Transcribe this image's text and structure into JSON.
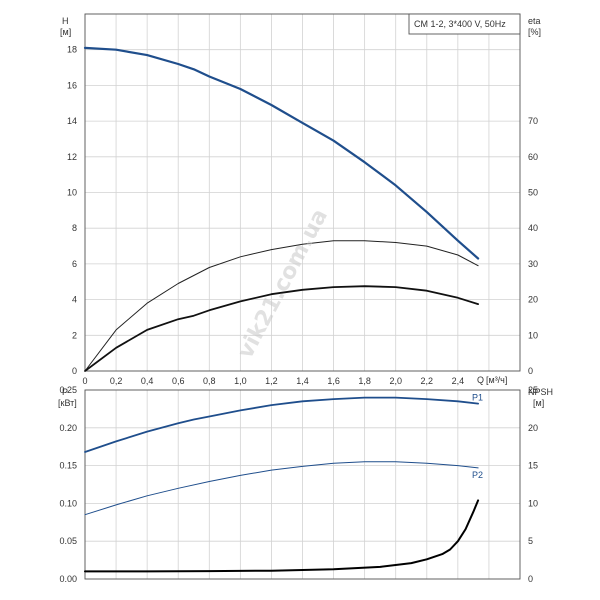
{
  "chart_data": [
    {
      "type": "line",
      "legend_box": "CM 1-2, 3*400 V, 50Hz",
      "ylabel_left": "H",
      "ylabel_left_unit": "[м]",
      "ylabel_right": "eta",
      "ylabel_right_unit": "[%]",
      "xlabel": "Q",
      "xlabel_unit": "[м³/ч]",
      "xlim": [
        0,
        2.8
      ],
      "ylim": [
        0,
        20
      ],
      "ylim_right": [
        0,
        100
      ],
      "grid": true,
      "x_ticks": [
        "0",
        "0,2",
        "0,4",
        "0,6",
        "0,8",
        "1,0",
        "1,2",
        "1,4",
        "1,6",
        "1,8",
        "2,0",
        "2,2",
        "2,4"
      ],
      "y_ticks": [
        "0",
        "2",
        "4",
        "6",
        "8",
        "10",
        "12",
        "14",
        "16",
        "18"
      ],
      "y_right_ticks": [
        "0",
        "10",
        "20",
        "30",
        "40",
        "50",
        "60",
        "70"
      ],
      "series": [
        {
          "color": "#1f4e8c",
          "axis": "left",
          "x": [
            0,
            0.2,
            0.4,
            0.6,
            0.7,
            0.8,
            1.0,
            1.2,
            1.4,
            1.6,
            1.8,
            2.0,
            2.2,
            2.4,
            2.53
          ],
          "y": [
            18.1,
            18.0,
            17.7,
            17.2,
            16.9,
            16.5,
            15.8,
            14.9,
            13.9,
            12.9,
            11.7,
            10.4,
            8.9,
            7.3,
            6.3
          ]
        },
        {
          "color": "#222222",
          "axis": "left",
          "x": [
            0,
            0.2,
            0.4,
            0.6,
            0.8,
            1.0,
            1.2,
            1.4,
            1.6,
            1.8,
            2.0,
            2.2,
            2.4,
            2.53
          ],
          "y": [
            0,
            2.3,
            3.8,
            4.9,
            5.8,
            6.4,
            6.8,
            7.1,
            7.3,
            7.3,
            7.2,
            7.0,
            6.5,
            5.9
          ]
        },
        {
          "color": "#111111",
          "axis": "left",
          "x": [
            0,
            0.2,
            0.4,
            0.6,
            0.7,
            0.8,
            1.0,
            1.2,
            1.4,
            1.6,
            1.8,
            2.0,
            2.2,
            2.4,
            2.53
          ],
          "y": [
            0,
            1.3,
            2.3,
            2.9,
            3.1,
            3.4,
            3.9,
            4.3,
            4.55,
            4.7,
            4.75,
            4.7,
            4.5,
            4.1,
            3.75
          ]
        }
      ]
    },
    {
      "type": "line",
      "ylabel_left": "P",
      "ylabel_left_unit": "[кВт]",
      "ylabel_right": "NPSH",
      "ylabel_right_unit": "[м]",
      "xlim": [
        0,
        2.8
      ],
      "ylim": [
        0,
        0.25
      ],
      "ylim_right": [
        0,
        25
      ],
      "grid": true,
      "y_ticks": [
        "0.00",
        "0.05",
        "0.10",
        "0.15",
        "0.20",
        "0.25"
      ],
      "y_right_ticks": [
        "0",
        "5",
        "10",
        "15",
        "20",
        "25"
      ],
      "series": [
        {
          "name": "P1",
          "color": "#1f4e8c",
          "axis": "left",
          "x": [
            0,
            0.2,
            0.4,
            0.6,
            0.7,
            0.8,
            1.0,
            1.2,
            1.4,
            1.6,
            1.8,
            2.0,
            2.2,
            2.4,
            2.53
          ],
          "y": [
            0.168,
            0.182,
            0.195,
            0.206,
            0.211,
            0.215,
            0.223,
            0.23,
            0.235,
            0.238,
            0.24,
            0.24,
            0.238,
            0.235,
            0.232
          ]
        },
        {
          "name": "P2",
          "color": "#1f4e8c",
          "axis": "left",
          "x": [
            0,
            0.2,
            0.4,
            0.6,
            0.8,
            1.0,
            1.2,
            1.4,
            1.6,
            1.8,
            2.0,
            2.2,
            2.4,
            2.53
          ],
          "y": [
            0.085,
            0.098,
            0.11,
            0.12,
            0.129,
            0.137,
            0.144,
            0.149,
            0.153,
            0.155,
            0.155,
            0.153,
            0.15,
            0.147
          ]
        },
        {
          "color": "#000000",
          "axis": "right",
          "x": [
            0,
            0.4,
            0.8,
            1.2,
            1.6,
            1.9,
            2.1,
            2.2,
            2.3,
            2.35,
            2.4,
            2.45,
            2.5,
            2.53
          ],
          "y": [
            1.0,
            1.0,
            1.05,
            1.1,
            1.3,
            1.6,
            2.1,
            2.6,
            3.3,
            3.9,
            5.0,
            6.6,
            8.9,
            10.4
          ]
        }
      ]
    }
  ],
  "watermark": "vik21.com.ua"
}
